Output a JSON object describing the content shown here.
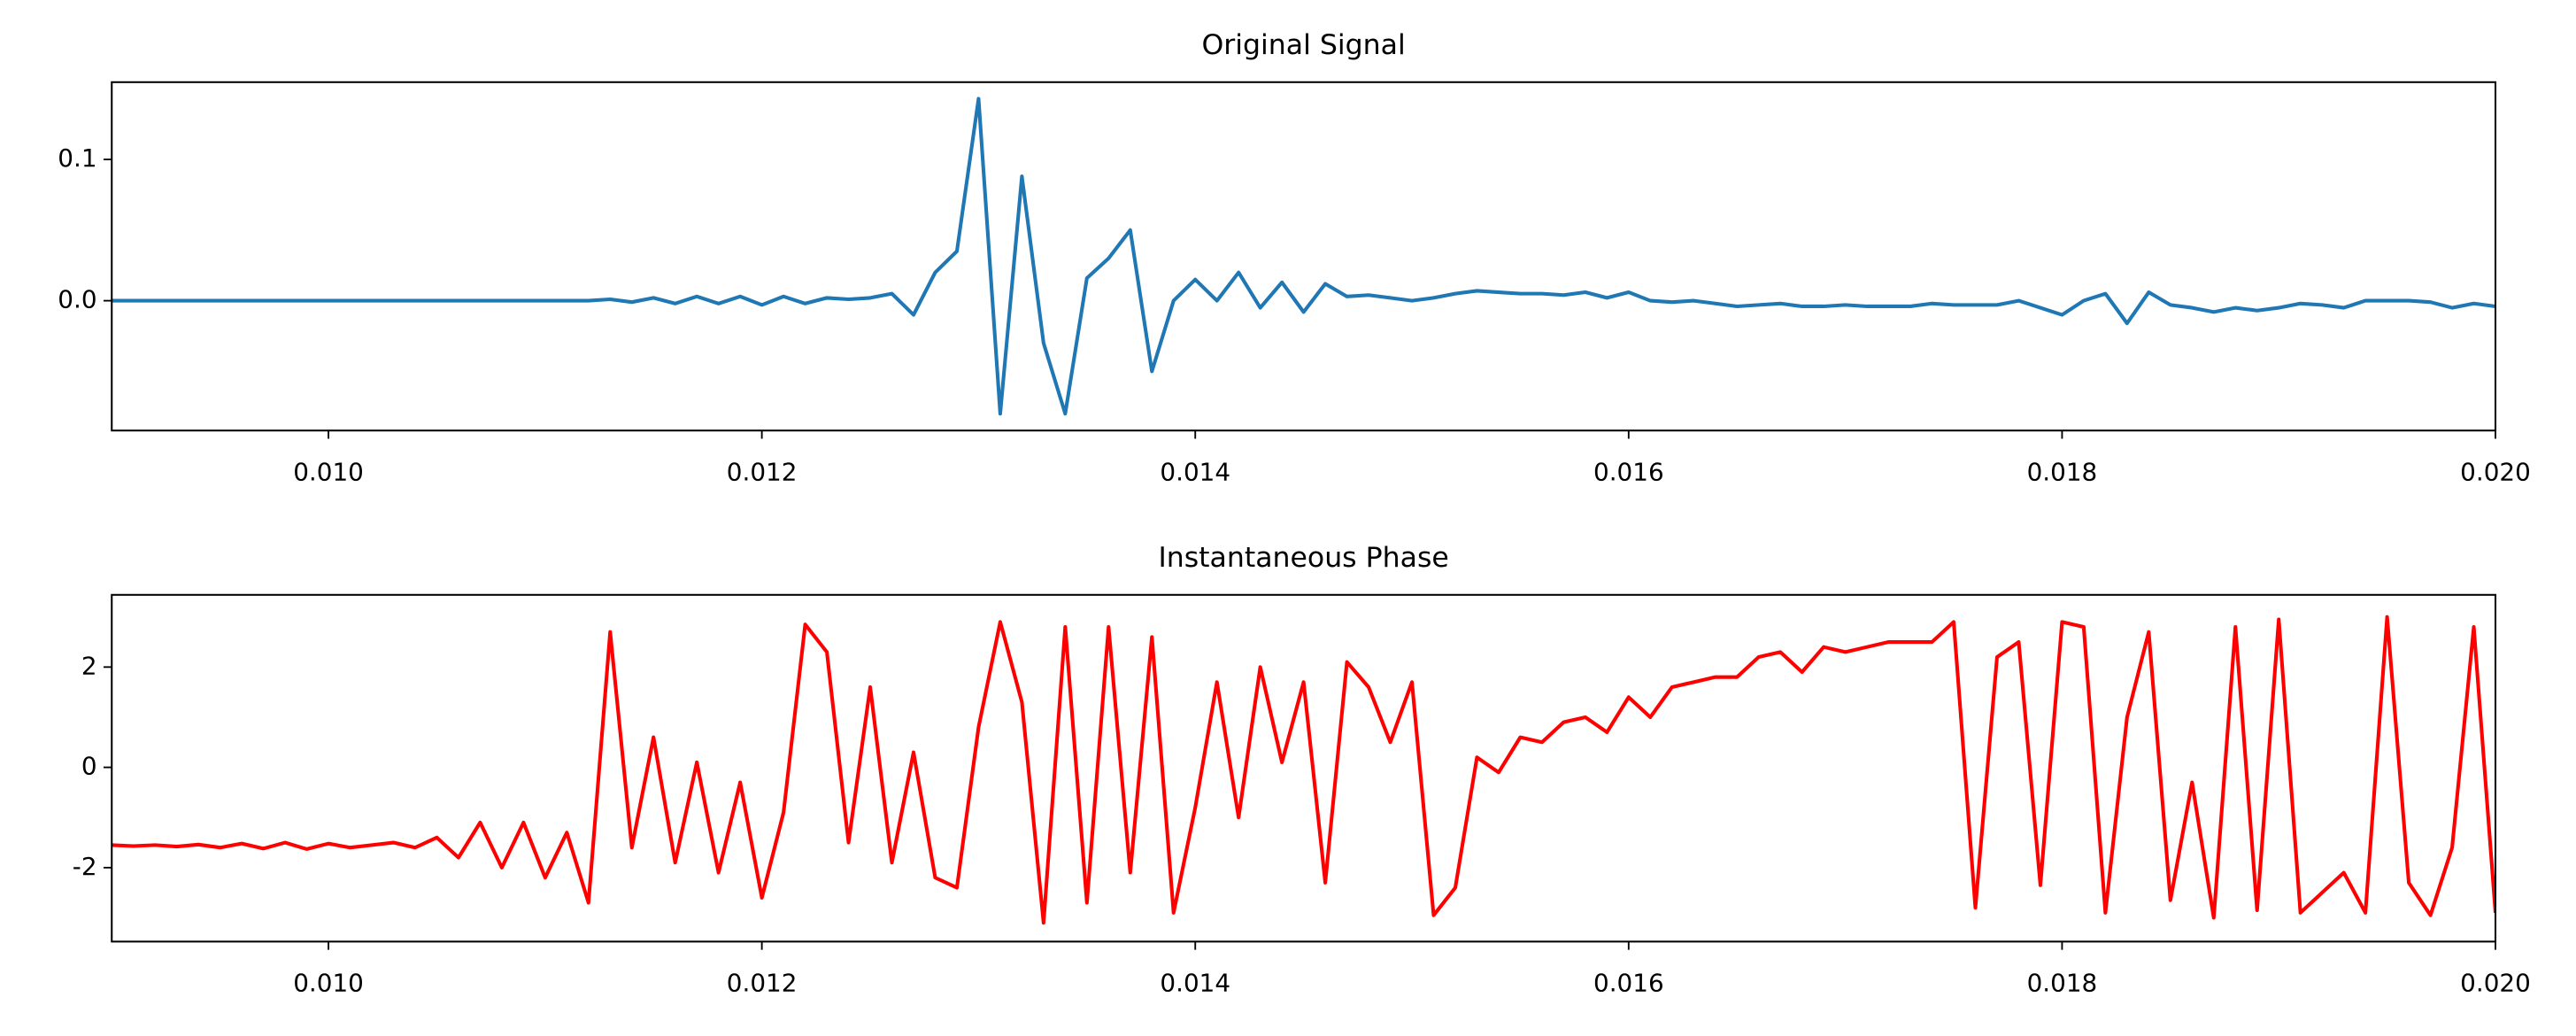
{
  "chart_data": [
    {
      "type": "line",
      "title": "Original Signal",
      "color": "#1f77b4",
      "x": [
        0.009,
        0.0091,
        0.0092,
        0.0093,
        0.0094,
        0.0095,
        0.0096,
        0.0097,
        0.0098,
        0.0099,
        0.01,
        0.0101,
        0.0102,
        0.0103,
        0.0104,
        0.0105,
        0.0106,
        0.0107,
        0.0108,
        0.0109,
        0.011,
        0.0111,
        0.0112,
        0.0113,
        0.0114,
        0.0115,
        0.0116,
        0.0117,
        0.0118,
        0.0119,
        0.012,
        0.0121,
        0.0122,
        0.0123,
        0.0124,
        0.0125,
        0.0126,
        0.0127,
        0.0128,
        0.0129,
        0.013,
        0.0131,
        0.0132,
        0.0133,
        0.0134,
        0.0135,
        0.0136,
        0.0137,
        0.0138,
        0.0139,
        0.014,
        0.0141,
        0.0142,
        0.0143,
        0.0144,
        0.0145,
        0.0146,
        0.0147,
        0.0148,
        0.0149,
        0.015,
        0.0151,
        0.0152,
        0.0153,
        0.0154,
        0.0155,
        0.0156,
        0.0157,
        0.0158,
        0.0159,
        0.016,
        0.0161,
        0.0162,
        0.0163,
        0.0164,
        0.0165,
        0.0166,
        0.0167,
        0.0168,
        0.0169,
        0.017,
        0.0171,
        0.0172,
        0.0173,
        0.0174,
        0.0175,
        0.0176,
        0.0177,
        0.0178,
        0.0179,
        0.018,
        0.0181,
        0.0182,
        0.0183,
        0.0184,
        0.0185,
        0.0186,
        0.0187,
        0.0188,
        0.0189,
        0.019,
        0.0191,
        0.0192,
        0.0193,
        0.0194,
        0.0195,
        0.0196,
        0.0197,
        0.0198,
        0.0199,
        0.02
      ],
      "values": [
        0,
        0,
        0,
        0,
        0,
        0,
        0,
        0,
        0,
        0,
        0,
        0,
        0,
        0,
        0,
        0,
        0,
        0,
        0,
        0,
        0,
        0,
        0,
        0.001,
        -0.001,
        0.002,
        -0.002,
        0.003,
        -0.002,
        0.003,
        -0.003,
        0.003,
        -0.002,
        0.002,
        0.001,
        0.002,
        0.005,
        -0.01,
        0.02,
        0.035,
        0.143,
        -0.08,
        0.088,
        -0.03,
        -0.08,
        0.016,
        0.03,
        0.05,
        -0.05,
        0.0,
        0.015,
        0.0,
        0.02,
        -0.005,
        0.013,
        -0.008,
        0.012,
        0.003,
        0.004,
        0.002,
        0.0,
        0.002,
        0.005,
        0.007,
        0.006,
        0.005,
        0.005,
        0.004,
        0.006,
        0.002,
        0.006,
        0.0,
        -0.001,
        0.0,
        -0.002,
        -0.004,
        -0.003,
        -0.002,
        -0.004,
        -0.004,
        -0.003,
        -0.004,
        -0.004,
        -0.004,
        -0.002,
        -0.003,
        -0.003,
        -0.003,
        0.0,
        -0.005,
        -0.01,
        0.0,
        0.005,
        -0.016,
        0.006,
        -0.003,
        -0.005,
        -0.008,
        -0.005,
        -0.007,
        -0.005,
        -0.002,
        -0.003,
        -0.005,
        0.0,
        0.0,
        0.0,
        -0.001,
        -0.005,
        -0.002,
        -0.004
      ],
      "xlim": [
        0.009,
        0.02
      ],
      "ylim": [
        -0.0919,
        0.1547
      ],
      "xticks": [
        {
          "value": 0.01,
          "label": "0.010"
        },
        {
          "value": 0.012,
          "label": "0.012"
        },
        {
          "value": 0.014,
          "label": "0.014"
        },
        {
          "value": 0.016,
          "label": "0.016"
        },
        {
          "value": 0.018,
          "label": "0.018"
        },
        {
          "value": 0.02,
          "label": "0.020"
        }
      ],
      "yticks": [
        {
          "value": 0,
          "label": "0.0"
        },
        0.1
      ]
    },
    {
      "type": "line",
      "title": "Instantaneous Phase",
      "color": "#ff0000",
      "x": [
        0.009,
        0.0091,
        0.0092,
        0.0093,
        0.0094,
        0.0095,
        0.0096,
        0.0097,
        0.0098,
        0.0099,
        0.01,
        0.0101,
        0.0102,
        0.0103,
        0.0104,
        0.0105,
        0.0106,
        0.0107,
        0.0108,
        0.0109,
        0.011,
        0.0111,
        0.0112,
        0.0113,
        0.0114,
        0.0115,
        0.0116,
        0.0117,
        0.0118,
        0.0119,
        0.012,
        0.0121,
        0.0122,
        0.0123,
        0.0124,
        0.0125,
        0.0126,
        0.0127,
        0.0128,
        0.0129,
        0.013,
        0.0131,
        0.0132,
        0.0133,
        0.0134,
        0.0135,
        0.0136,
        0.0137,
        0.0138,
        0.0139,
        0.014,
        0.0141,
        0.0142,
        0.0143,
        0.0144,
        0.0145,
        0.0146,
        0.0147,
        0.0148,
        0.0149,
        0.015,
        0.0151,
        0.0152,
        0.0153,
        0.0154,
        0.0155,
        0.0156,
        0.0157,
        0.0158,
        0.0159,
        0.016,
        0.0161,
        0.0162,
        0.0163,
        0.0164,
        0.0165,
        0.0166,
        0.0167,
        0.0168,
        0.0169,
        0.017,
        0.0171,
        0.0172,
        0.0173,
        0.0174,
        0.0175,
        0.0176,
        0.0177,
        0.0178,
        0.0179,
        0.018,
        0.0181,
        0.0182,
        0.0183,
        0.0184,
        0.0185,
        0.0186,
        0.0187,
        0.0188,
        0.0189,
        0.019,
        0.0191,
        0.0192,
        0.0193,
        0.0194,
        0.0195,
        0.0196,
        0.0197,
        0.0198,
        0.0199,
        0.02
      ],
      "values": [
        -1.55,
        -1.57,
        -1.55,
        -1.58,
        -1.54,
        -1.6,
        -1.52,
        -1.62,
        -1.5,
        -1.63,
        -1.52,
        -1.6,
        -1.55,
        -1.5,
        -1.6,
        -1.4,
        -1.8,
        -1.1,
        -2.0,
        -1.1,
        -2.2,
        -1.3,
        -2.7,
        2.7,
        -1.6,
        0.6,
        -1.9,
        0.1,
        -2.1,
        -0.3,
        -2.6,
        -0.9,
        2.85,
        2.3,
        -1.5,
        1.6,
        -1.9,
        0.3,
        -2.2,
        -2.4,
        0.8,
        2.9,
        1.3,
        -3.1,
        2.8,
        -2.7,
        2.8,
        -2.1,
        2.6,
        -2.9,
        -0.8,
        1.7,
        -1.0,
        2.0,
        0.1,
        1.7,
        -2.3,
        2.1,
        1.6,
        0.5,
        1.7,
        -2.95,
        -2.4,
        0.2,
        -0.1,
        0.6,
        0.5,
        0.9,
        1.0,
        0.7,
        1.4,
        1.0,
        1.6,
        1.7,
        1.8,
        1.8,
        2.2,
        2.3,
        1.9,
        2.4,
        2.3,
        2.4,
        2.5,
        2.5,
        2.5,
        2.9,
        -2.8,
        2.2,
        2.5,
        -2.35,
        2.9,
        2.8,
        -2.9,
        1.0,
        2.7,
        -2.65,
        -0.3,
        -3.0,
        2.8,
        -2.85,
        2.95,
        -2.9,
        -2.5,
        -2.1,
        -2.9,
        3.0,
        -2.3,
        -2.95,
        -1.6,
        2.8,
        -2.9
      ],
      "xlim": [
        0.009,
        0.02
      ],
      "ylim": [
        -3.475,
        3.44
      ],
      "xticks": [
        {
          "value": 0.01,
          "label": "0.010"
        },
        {
          "value": 0.012,
          "label": "0.012"
        },
        {
          "value": 0.014,
          "label": "0.014"
        },
        {
          "value": 0.016,
          "label": "0.016"
        },
        {
          "value": 0.018,
          "label": "0.018"
        },
        {
          "value": 0.02,
          "label": "0.020"
        }
      ],
      "yticks": [
        -2,
        0,
        2
      ]
    }
  ]
}
